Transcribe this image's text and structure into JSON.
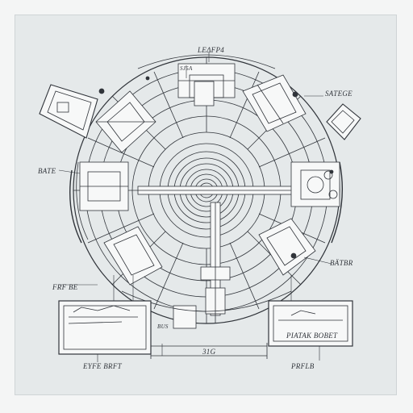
{
  "labels": {
    "top": "LEΔFP4",
    "top_small": "SJ5A",
    "right_upper": "SATEGE",
    "left_mid": "BATE",
    "right_mid": "BÄTBR",
    "left_lower": "FRF BE",
    "bottom_left": "EYFE BRFT",
    "bottom_center": "31G",
    "bottom_right": "PRFLB",
    "box_right": "PIATAK BOBET",
    "box_center_tag": "BUS"
  },
  "colors": {
    "ink": "#30343a",
    "paper": "#e5e9ea",
    "panel": "#f7f8f8",
    "frame": "#f4f5f5"
  }
}
